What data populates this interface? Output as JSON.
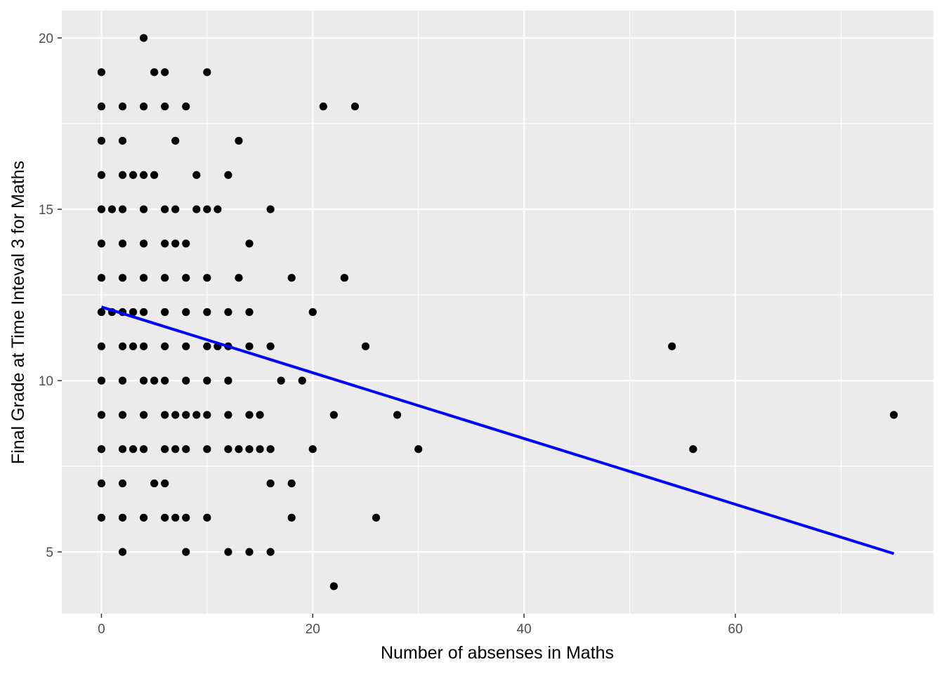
{
  "chart_data": {
    "type": "scatter",
    "title": "",
    "xlabel": "Number of absenses in Maths",
    "ylabel": "Final Grade at Time Inteval 3 for Maths",
    "xlim": [
      -3.75,
      78.75
    ],
    "ylim": [
      3.2,
      20.8
    ],
    "x_ticks": [
      0,
      20,
      40,
      60
    ],
    "x_minor_ticks": [
      10,
      30,
      50,
      70
    ],
    "y_ticks": [
      5,
      10,
      15,
      20
    ],
    "y_minor_ticks": [
      7.5,
      12.5,
      17.5
    ],
    "grid": true,
    "background_color": "#ebebeb",
    "grid_color": "#ffffff",
    "point_color": "#000000",
    "line_color": "#0000ff",
    "trend_line": {
      "x": [
        0,
        75
      ],
      "y": [
        12.15,
        4.95
      ]
    },
    "points": [
      [
        0,
        19
      ],
      [
        0,
        18
      ],
      [
        0,
        17
      ],
      [
        0,
        16
      ],
      [
        0,
        15
      ],
      [
        0,
        14
      ],
      [
        0,
        13
      ],
      [
        0,
        12
      ],
      [
        0,
        11
      ],
      [
        0,
        10
      ],
      [
        0,
        9
      ],
      [
        0,
        8
      ],
      [
        0,
        7
      ],
      [
        0,
        6
      ],
      [
        1,
        15
      ],
      [
        1,
        12
      ],
      [
        2,
        18
      ],
      [
        2,
        17
      ],
      [
        2,
        16
      ],
      [
        2,
        15
      ],
      [
        2,
        14
      ],
      [
        2,
        13
      ],
      [
        2,
        12
      ],
      [
        2,
        11
      ],
      [
        2,
        10
      ],
      [
        2,
        9
      ],
      [
        2,
        8
      ],
      [
        2,
        7
      ],
      [
        2,
        6
      ],
      [
        2,
        5
      ],
      [
        3,
        16
      ],
      [
        3,
        12
      ],
      [
        3,
        11
      ],
      [
        3,
        8
      ],
      [
        4,
        20
      ],
      [
        4,
        18
      ],
      [
        4,
        16
      ],
      [
        4,
        15
      ],
      [
        4,
        14
      ],
      [
        4,
        13
      ],
      [
        4,
        12
      ],
      [
        4,
        11
      ],
      [
        4,
        10
      ],
      [
        4,
        9
      ],
      [
        4,
        8
      ],
      [
        4,
        6
      ],
      [
        5,
        19
      ],
      [
        5,
        16
      ],
      [
        5,
        10
      ],
      [
        5,
        7
      ],
      [
        6,
        19
      ],
      [
        6,
        18
      ],
      [
        6,
        15
      ],
      [
        6,
        14
      ],
      [
        6,
        13
      ],
      [
        6,
        12
      ],
      [
        6,
        11
      ],
      [
        6,
        10
      ],
      [
        6,
        9
      ],
      [
        6,
        8
      ],
      [
        6,
        7
      ],
      [
        6,
        6
      ],
      [
        7,
        17
      ],
      [
        7,
        15
      ],
      [
        7,
        14
      ],
      [
        7,
        9
      ],
      [
        7,
        8
      ],
      [
        7,
        6
      ],
      [
        8,
        18
      ],
      [
        8,
        14
      ],
      [
        8,
        13
      ],
      [
        8,
        12
      ],
      [
        8,
        11
      ],
      [
        8,
        10
      ],
      [
        8,
        9
      ],
      [
        8,
        8
      ],
      [
        8,
        6
      ],
      [
        8,
        5
      ],
      [
        9,
        16
      ],
      [
        9,
        15
      ],
      [
        9,
        9
      ],
      [
        10,
        19
      ],
      [
        10,
        15
      ],
      [
        10,
        13
      ],
      [
        10,
        12
      ],
      [
        10,
        11
      ],
      [
        10,
        10
      ],
      [
        10,
        9
      ],
      [
        10,
        8
      ],
      [
        10,
        6
      ],
      [
        11,
        15
      ],
      [
        11,
        11
      ],
      [
        12,
        16
      ],
      [
        12,
        12
      ],
      [
        12,
        11
      ],
      [
        12,
        10
      ],
      [
        12,
        9
      ],
      [
        12,
        8
      ],
      [
        12,
        5
      ],
      [
        13,
        17
      ],
      [
        13,
        13
      ],
      [
        13,
        8
      ],
      [
        14,
        14
      ],
      [
        14,
        12
      ],
      [
        14,
        11
      ],
      [
        14,
        9
      ],
      [
        14,
        8
      ],
      [
        14,
        5
      ],
      [
        15,
        9
      ],
      [
        15,
        8
      ],
      [
        16,
        15
      ],
      [
        16,
        11
      ],
      [
        16,
        8
      ],
      [
        16,
        7
      ],
      [
        16,
        5
      ],
      [
        17,
        10
      ],
      [
        18,
        13
      ],
      [
        18,
        7
      ],
      [
        18,
        6
      ],
      [
        19,
        10
      ],
      [
        20,
        12
      ],
      [
        20,
        8
      ],
      [
        21,
        18
      ],
      [
        22,
        9
      ],
      [
        22,
        4
      ],
      [
        23,
        13
      ],
      [
        24,
        18
      ],
      [
        25,
        11
      ],
      [
        26,
        6
      ],
      [
        28,
        9
      ],
      [
        30,
        8
      ],
      [
        54,
        11
      ],
      [
        56,
        8
      ],
      [
        75,
        9
      ]
    ]
  }
}
